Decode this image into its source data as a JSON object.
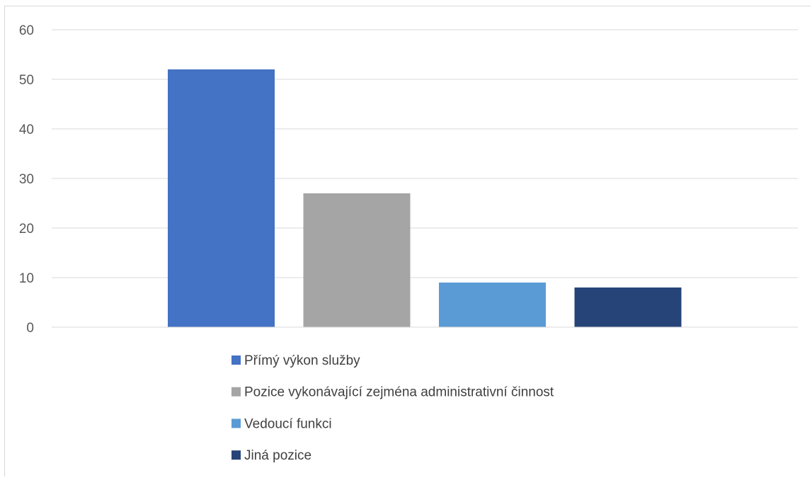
{
  "chart_data": {
    "type": "bar",
    "categories": [
      "Přímý výkon služby",
      "Pozice vykonávající zejména administrativní činnost",
      "Vedoucí funkci",
      "Jiná pozice"
    ],
    "values": [
      52,
      27,
      9,
      8
    ],
    "colors": [
      "#4472c4",
      "#a5a5a5",
      "#5b9bd5",
      "#264478"
    ],
    "ylim": [
      0,
      60
    ],
    "yticks": [
      0,
      10,
      20,
      30,
      40,
      50,
      60
    ],
    "ytick_labels": [
      "0",
      "10",
      "20",
      "30",
      "40",
      "50",
      "60"
    ],
    "grid": true,
    "gridline_color": "#d9d9d9",
    "legend_position": "bottom",
    "title": "",
    "xlabel": "",
    "ylabel": ""
  }
}
